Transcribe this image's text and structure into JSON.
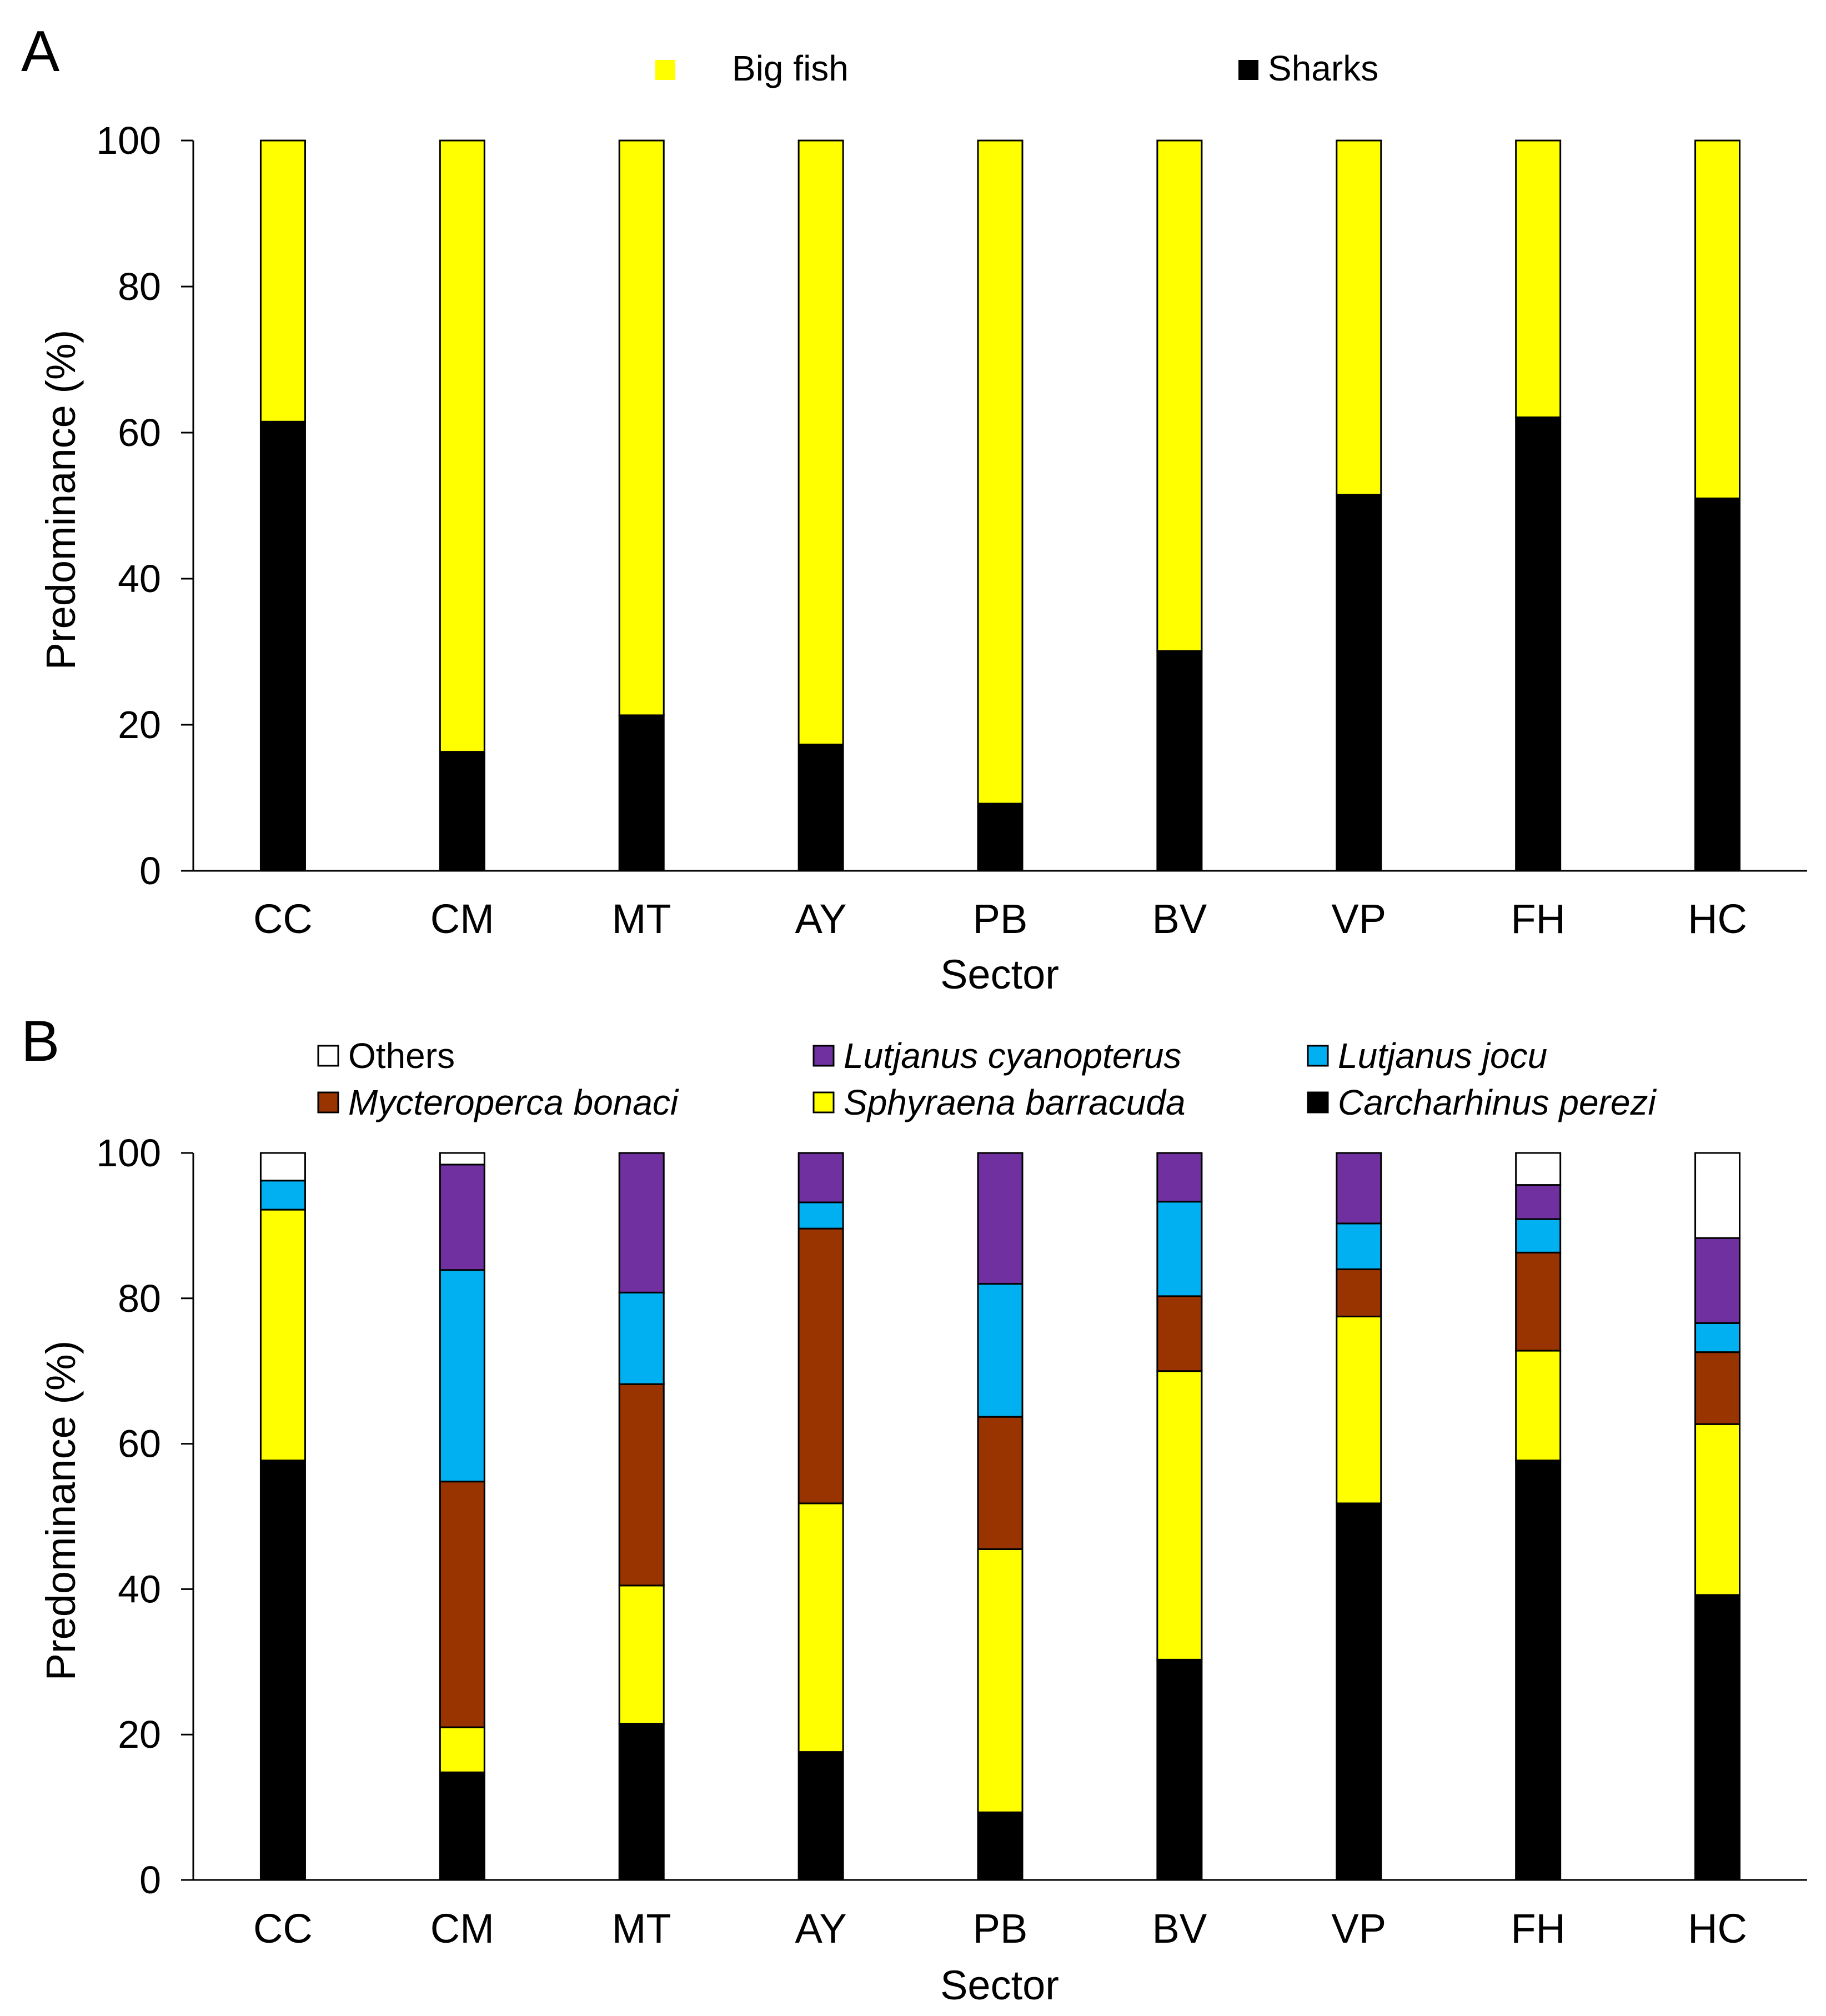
{
  "chart_data": [
    {
      "panel_label": "A",
      "type": "bar",
      "stacked": true,
      "categories": [
        "CC",
        "CM",
        "MT",
        "AY",
        "PB",
        "BV",
        "VP",
        "FH",
        "HC"
      ],
      "series": [
        {
          "name": "Sharks",
          "color": "#000000",
          "values": [
            61.5,
            16.3,
            21.3,
            17.3,
            9.2,
            30.1,
            51.5,
            62.1,
            51.0
          ]
        },
        {
          "name": "Big fish",
          "color": "#ffff00",
          "values": [
            38.5,
            83.7,
            78.7,
            82.7,
            90.8,
            69.9,
            48.5,
            37.9,
            49.0
          ]
        }
      ],
      "legend": [
        {
          "label": "Big fish",
          "color": "#ffff00"
        },
        {
          "label": "Sharks",
          "color": "#000000"
        }
      ],
      "xlabel": "Sector",
      "ylabel": "Predominance (%)",
      "ylim": [
        0,
        100
      ],
      "yticks": [
        0,
        20,
        40,
        60,
        80,
        100
      ],
      "legend_position": "top"
    },
    {
      "panel_label": "B",
      "type": "bar",
      "stacked": true,
      "categories": [
        "CC",
        "CM",
        "MT",
        "AY",
        "PB",
        "BV",
        "VP",
        "FH",
        "HC"
      ],
      "series": [
        {
          "name": "Carcharhinus perezi",
          "color": "#000000",
          "values": [
            57.7,
            14.8,
            21.5,
            17.6,
            9.3,
            30.3,
            51.8,
            57.7,
            39.2
          ]
        },
        {
          "name": "Sphyraena barracuda",
          "color": "#ffff00",
          "values": [
            34.5,
            6.2,
            19.0,
            34.2,
            36.2,
            39.7,
            25.7,
            15.1,
            23.5
          ]
        },
        {
          "name": "Mycteroperca bonaci",
          "color": "#993300",
          "values": [
            0.0,
            33.8,
            27.7,
            37.8,
            18.2,
            10.3,
            6.5,
            13.5,
            9.9
          ]
        },
        {
          "name": "Lutjanus jocu",
          "color": "#00b0f0",
          "values": [
            4.0,
            29.1,
            12.6,
            3.6,
            18.3,
            13.0,
            6.3,
            4.6,
            4.0
          ]
        },
        {
          "name": "Lutjanus cyanopterus",
          "color": "#7030a0",
          "values": [
            0.0,
            14.5,
            19.2,
            6.8,
            18.0,
            6.7,
            9.7,
            4.7,
            11.7
          ]
        },
        {
          "name": "Others",
          "color": "#ffffff",
          "values": [
            3.8,
            1.6,
            0.0,
            0.0,
            0.0,
            0.0,
            0.0,
            4.4,
            11.7
          ]
        }
      ],
      "legend": [
        {
          "label": "Others",
          "color": "#ffffff",
          "italic": false
        },
        {
          "label": "Lutjanus cyanopterus",
          "color": "#7030a0",
          "italic": true
        },
        {
          "label": "Lutjanus jocu",
          "color": "#00b0f0",
          "italic": true
        },
        {
          "label": "Mycteroperca bonaci",
          "color": "#993300",
          "italic": true
        },
        {
          "label": "Sphyraena barracuda",
          "color": "#ffff00",
          "italic": true
        },
        {
          "label": "Carcharhinus perezi",
          "color": "#000000",
          "italic": true
        }
      ],
      "xlabel": "Sector",
      "ylabel": "Predominance (%)",
      "ylim": [
        0,
        100
      ],
      "yticks": [
        0,
        20,
        40,
        60,
        80,
        100
      ],
      "legend_position": "top"
    }
  ]
}
